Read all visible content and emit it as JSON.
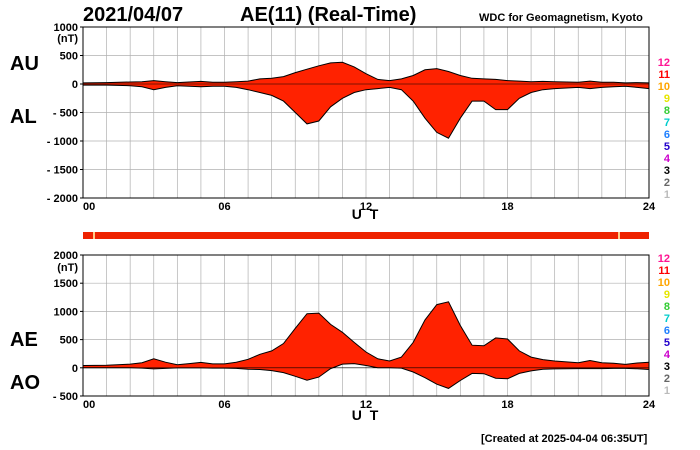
{
  "header": {
    "date": "2021/04/07",
    "title": "AE(11) (Real-Time)",
    "source": "WDC for Geomagnetism, Kyoto"
  },
  "footer": {
    "created": "[Created at 2025-04-04 06:35UT]"
  },
  "colors": {
    "fill": "#ff2200",
    "stroke": "#000000",
    "grid": "#b0b0b0",
    "status_bar": "#ee2200",
    "station_colors": [
      "#ff1493",
      "#ff0000",
      "#ffa500",
      "#e6e600",
      "#33cc33",
      "#00cccc",
      "#1e7fff",
      "#2200cc",
      "#cc00cc",
      "#000000",
      "#666666",
      "#bbbbbb"
    ]
  },
  "stations": [
    "12",
    "11",
    "10",
    "9",
    "8",
    "7",
    "6",
    "5",
    "4",
    "3",
    "2",
    "1"
  ],
  "chart_data": [
    {
      "type": "area",
      "name_top": "AU",
      "name_bottom": "AL",
      "xlabel": "U T",
      "ylabel_unit": "(nT)",
      "xlim": [
        0,
        24
      ],
      "ylim": [
        -2000,
        1000
      ],
      "xticks": [
        "00",
        "06",
        "12",
        "18",
        "24"
      ],
      "yticks": [
        "1000",
        "500",
        "0",
        "- 500",
        "- 1000",
        "- 1500",
        "- 2000"
      ],
      "upper": {
        "x": [
          0,
          1,
          2,
          2.5,
          3,
          3.5,
          4,
          4.5,
          5,
          5.5,
          6,
          6.5,
          7,
          7.5,
          8,
          8.5,
          9,
          9.5,
          10,
          10.5,
          11,
          11.5,
          12,
          12.5,
          13,
          13.5,
          14,
          14.5,
          15,
          15.5,
          16,
          16.5,
          17,
          17.5,
          18,
          18.5,
          19,
          19.5,
          20,
          20.5,
          21,
          21.5,
          22,
          22.5,
          23,
          23.5,
          24
        ],
        "y": [
          20,
          25,
          35,
          40,
          60,
          40,
          25,
          35,
          45,
          30,
          30,
          40,
          50,
          90,
          100,
          130,
          200,
          260,
          320,
          370,
          380,
          300,
          180,
          80,
          60,
          90,
          150,
          250,
          270,
          220,
          150,
          100,
          90,
          80,
          60,
          50,
          40,
          45,
          40,
          35,
          30,
          50,
          30,
          30,
          20,
          25,
          20
        ]
      },
      "lower": {
        "x": [
          0,
          1,
          2,
          2.5,
          3,
          3.5,
          4,
          4.5,
          5,
          5.5,
          6,
          6.5,
          7,
          7.5,
          8,
          8.5,
          9,
          9.5,
          10,
          10.5,
          11,
          11.5,
          12,
          12.5,
          13,
          13.5,
          14,
          14.5,
          15,
          15.5,
          16,
          16.5,
          17,
          17.5,
          18,
          18.5,
          19,
          19.5,
          20,
          20.5,
          21,
          21.5,
          22,
          22.5,
          23,
          23.5,
          24
        ],
        "y": [
          -20,
          -20,
          -30,
          -50,
          -100,
          -60,
          -30,
          -40,
          -50,
          -40,
          -40,
          -60,
          -100,
          -150,
          -200,
          -300,
          -500,
          -700,
          -650,
          -400,
          -250,
          -150,
          -100,
          -80,
          -60,
          -100,
          -300,
          -600,
          -850,
          -950,
          -600,
          -300,
          -300,
          -450,
          -450,
          -250,
          -150,
          -100,
          -80,
          -70,
          -60,
          -80,
          -60,
          -50,
          -40,
          -60,
          -80
        ]
      }
    },
    {
      "type": "area",
      "name_top": "AE",
      "name_bottom": "AO",
      "xlabel": "U T",
      "ylabel_unit": "(nT)",
      "xlim": [
        0,
        24
      ],
      "ylim": [
        -500,
        2000
      ],
      "xticks": [
        "00",
        "06",
        "12",
        "18",
        "24"
      ],
      "yticks": [
        "2000",
        "1500",
        "1000",
        "500",
        "0",
        "- 500"
      ],
      "upper": {
        "x": [
          0,
          1,
          2,
          2.5,
          3,
          3.5,
          4,
          4.5,
          5,
          5.5,
          6,
          6.5,
          7,
          7.5,
          8,
          8.5,
          9,
          9.5,
          10,
          10.5,
          11,
          11.5,
          12,
          12.5,
          13,
          13.5,
          14,
          14.5,
          15,
          15.5,
          16,
          16.5,
          17,
          17.5,
          18,
          18.5,
          19,
          19.5,
          20,
          20.5,
          21,
          21.5,
          22,
          22.5,
          23,
          23.5,
          24
        ],
        "y": [
          40,
          45,
          65,
          90,
          160,
          100,
          55,
          75,
          95,
          70,
          70,
          100,
          150,
          240,
          300,
          430,
          700,
          960,
          970,
          770,
          630,
          450,
          280,
          160,
          120,
          190,
          450,
          850,
          1120,
          1170,
          750,
          400,
          390,
          530,
          510,
          300,
          190,
          145,
          120,
          105,
          90,
          130,
          90,
          80,
          60,
          85,
          100
        ]
      },
      "lower": {
        "x": [
          0,
          1,
          2,
          2.5,
          3,
          3.5,
          4,
          4.5,
          5,
          5.5,
          6,
          6.5,
          7,
          7.5,
          8,
          8.5,
          9,
          9.5,
          10,
          10.5,
          11,
          11.5,
          12,
          12.5,
          13,
          13.5,
          14,
          14.5,
          15,
          15.5,
          16,
          16.5,
          17,
          17.5,
          18,
          18.5,
          19,
          19.5,
          20,
          20.5,
          21,
          21.5,
          22,
          22.5,
          23,
          23.5,
          24
        ],
        "y": [
          0,
          2,
          2,
          -5,
          -20,
          -10,
          -2,
          -2,
          -2,
          -5,
          -5,
          -10,
          -25,
          -30,
          -50,
          -85,
          -150,
          -220,
          -165,
          -15,
          65,
          75,
          40,
          0,
          0,
          -5,
          -75,
          -175,
          -290,
          -365,
          -225,
          -100,
          -105,
          -185,
          -195,
          -100,
          -55,
          -25,
          -20,
          -17,
          -15,
          -15,
          -15,
          -10,
          -10,
          -17,
          -30
        ]
      }
    }
  ]
}
